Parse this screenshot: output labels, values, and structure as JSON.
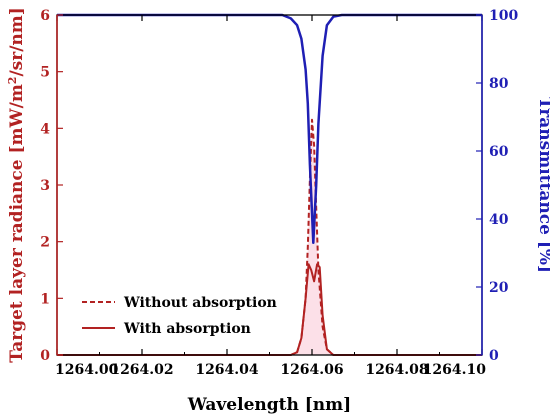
{
  "chart_data": {
    "type": "line",
    "xlabel": "Wavelength [nm]",
    "ylabel_left": "Target layer radiance [mW/m²/sr/nm]",
    "ylabel_left_main": "Target layer radiance [mW/m",
    "ylabel_left_sup": "2",
    "ylabel_left_tail": "/sr/nm]",
    "ylabel_right": "Transmittance [%]",
    "xlim": [
      1264.0,
      1264.1
    ],
    "ylim_left": [
      0,
      6
    ],
    "ylim_right": [
      0,
      100
    ],
    "x_ticks": [
      1264.0,
      1264.02,
      1264.04,
      1264.06,
      1264.08,
      1264.1
    ],
    "x_tick_labels": [
      "1264.00",
      "1264.02",
      "1264.04",
      "1264.06",
      "1264.08",
      "1264.10"
    ],
    "y_left_ticks": [
      0,
      1,
      2,
      3,
      4,
      5,
      6
    ],
    "y_left_tick_labels": [
      "0",
      "1",
      "2",
      "3",
      "4",
      "5",
      "6"
    ],
    "y_right_ticks": [
      0,
      20,
      40,
      60,
      80,
      100
    ],
    "y_right_tick_labels": [
      "0",
      "20",
      "40",
      "60",
      "80",
      "100"
    ],
    "legend_position": "bottom-left",
    "colors": {
      "radiance": "#b22222",
      "transmittance": "#1f1fb4",
      "left_axis": "#b22222",
      "right_axis": "#1f1fb4",
      "shade": "#f9c7d6"
    },
    "series": [
      {
        "name": "Without absorption",
        "axis": "left",
        "style": "dashed",
        "x": [
          1264.0,
          1264.055,
          1264.0565,
          1264.0575,
          1264.0585,
          1264.059,
          1264.0595,
          1264.06,
          1264.0605,
          1264.061,
          1264.0615,
          1264.0625,
          1264.0635,
          1264.065,
          1264.1
        ],
        "y": [
          0,
          0,
          0.05,
          0.3,
          1.0,
          1.9,
          3.1,
          4.15,
          3.7,
          2.6,
          1.5,
          0.5,
          0.1,
          0,
          0
        ]
      },
      {
        "name": "With absorption",
        "axis": "left",
        "style": "solid",
        "x": [
          1264.0,
          1264.055,
          1264.0565,
          1264.0575,
          1264.0585,
          1264.0592,
          1264.0598,
          1264.0605,
          1264.0612,
          1264.0618,
          1264.0625,
          1264.0635,
          1264.065,
          1264.1
        ],
        "y": [
          0,
          0,
          0.05,
          0.3,
          1.0,
          1.6,
          1.5,
          1.3,
          1.6,
          1.55,
          0.7,
          0.1,
          0,
          0
        ]
      },
      {
        "axis": "right",
        "style": "solid",
        "x": [
          1264.0,
          1264.053,
          1264.055,
          1264.0565,
          1264.0575,
          1264.0585,
          1264.059,
          1264.0595,
          1264.0603,
          1264.061,
          1264.0615,
          1264.0625,
          1264.0635,
          1264.065,
          1264.067,
          1264.1
        ],
        "y": [
          100,
          100,
          99,
          97,
          93,
          84,
          74,
          56,
          33,
          50,
          68,
          88,
          97,
          99.5,
          100,
          100
        ]
      }
    ]
  }
}
